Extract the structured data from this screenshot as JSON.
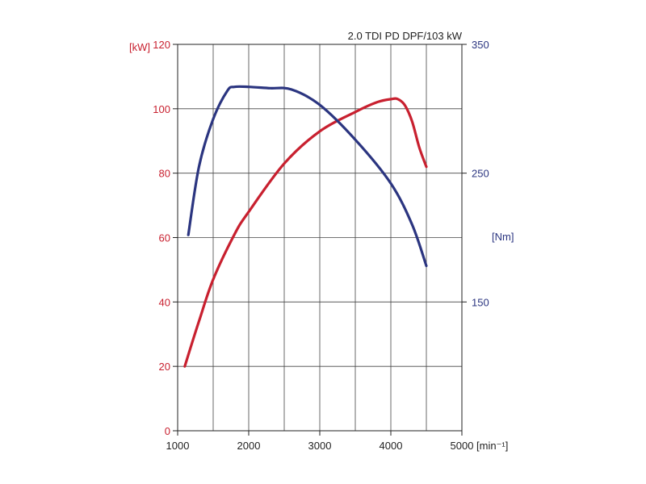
{
  "chart_data": {
    "type": "line",
    "title": "2.0 TDI PD DPF/103 kW",
    "x_axis": {
      "ticks": [
        1000,
        2000,
        3000,
        4000,
        5000
      ],
      "tick_labels": [
        "1000",
        "2000",
        "3000",
        "4000",
        "5000"
      ],
      "unit_label": "[min⁻¹]",
      "range": [
        1000,
        5000
      ]
    },
    "y_axis_left": {
      "ticks": [
        0,
        20,
        40,
        60,
        80,
        100,
        120
      ],
      "tick_labels": [
        "0",
        "20",
        "40",
        "60",
        "80",
        "100",
        "120"
      ],
      "unit_label": "[kW]",
      "range": [
        0,
        120
      ],
      "color": "#c8202f"
    },
    "y_axis_right": {
      "ticks": [
        150,
        250,
        350
      ],
      "tick_labels": [
        "150",
        "250",
        "350"
      ],
      "unit_label": "[Nm]",
      "range": [
        50,
        350
      ],
      "color": "#2b3580"
    },
    "grid": true,
    "series": [
      {
        "axis": "left",
        "color": "#c8202f",
        "x": [
          1100,
          1300,
          1500,
          1800,
          2000,
          2500,
          3000,
          3500,
          3800,
          4000,
          4100,
          4200,
          4300,
          4400,
          4500
        ],
        "y": [
          20,
          34,
          47,
          61,
          68,
          83,
          93,
          99,
          102,
          103,
          103,
          101,
          96,
          88,
          82
        ]
      },
      {
        "axis": "right",
        "color": "#2b3580",
        "x": [
          1150,
          1300,
          1500,
          1700,
          1800,
          2000,
          2300,
          2600,
          3000,
          3500,
          4000,
          4300,
          4500
        ],
        "y": [
          202,
          255,
          292,
          314,
          317,
          317,
          316,
          315,
          303,
          276,
          242,
          210,
          178
        ]
      }
    ]
  }
}
